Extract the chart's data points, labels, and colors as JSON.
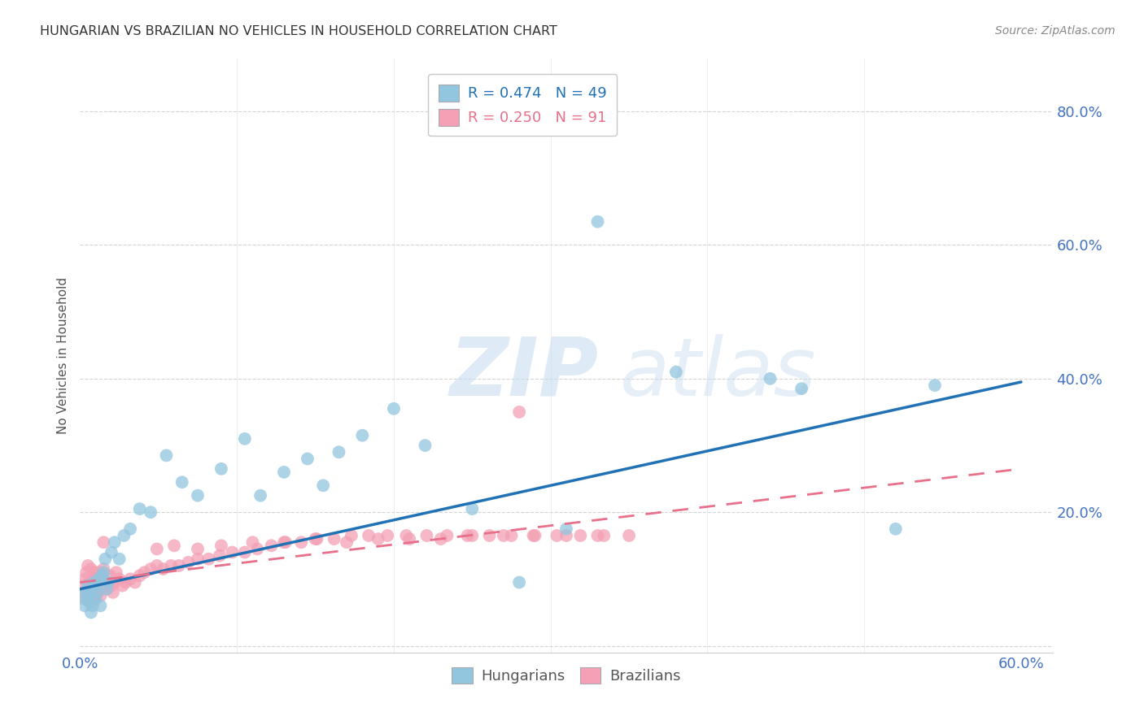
{
  "title": "HUNGARIAN VS BRAZILIAN NO VEHICLES IN HOUSEHOLD CORRELATION CHART",
  "source": "Source: ZipAtlas.com",
  "ylabel": "No Vehicles in Household",
  "xlim": [
    0.0,
    0.62
  ],
  "ylim": [
    -0.01,
    0.88
  ],
  "xtick_vals": [
    0.0,
    0.1,
    0.2,
    0.3,
    0.4,
    0.5,
    0.6
  ],
  "xticklabels": [
    "0.0%",
    "",
    "",
    "",
    "",
    "",
    "60.0%"
  ],
  "ytick_vals": [
    0.0,
    0.2,
    0.4,
    0.6,
    0.8
  ],
  "yticklabels": [
    "",
    "20.0%",
    "40.0%",
    "60.0%",
    "80.0%"
  ],
  "color_hungarian": "#92c5de",
  "color_brazilian": "#f4a0b5",
  "color_trendline_hungarian": "#2171b5",
  "color_trendline_brazilian": "#e8708a",
  "axis_tick_color": "#4472c4",
  "grid_color": "#d0d0d0",
  "title_color": "#333333",
  "source_color": "#888888",
  "ylabel_color": "#555555",
  "watermark_zip_color": "#c8ddf0",
  "watermark_atlas_color": "#c8ddf0",
  "hun_trendline_x0": 0.0,
  "hun_trendline_y0": 0.085,
  "hun_trendline_x1": 0.6,
  "hun_trendline_y1": 0.395,
  "bra_trendline_x0": 0.0,
  "bra_trendline_y0": 0.095,
  "bra_trendline_x1": 0.6,
  "bra_trendline_y1": 0.265,
  "hx": [
    0.002,
    0.003,
    0.004,
    0.005,
    0.005,
    0.006,
    0.007,
    0.007,
    0.008,
    0.009,
    0.01,
    0.01,
    0.011,
    0.012,
    0.013,
    0.014,
    0.015,
    0.016,
    0.017,
    0.018,
    0.02,
    0.022,
    0.025,
    0.028,
    0.032,
    0.038,
    0.045,
    0.055,
    0.065,
    0.075,
    0.09,
    0.105,
    0.115,
    0.13,
    0.145,
    0.155,
    0.165,
    0.18,
    0.2,
    0.22,
    0.25,
    0.28,
    0.31,
    0.33,
    0.38,
    0.44,
    0.46,
    0.52,
    0.545
  ],
  "hy": [
    0.075,
    0.06,
    0.08,
    0.09,
    0.07,
    0.065,
    0.05,
    0.08,
    0.06,
    0.095,
    0.07,
    0.09,
    0.08,
    0.1,
    0.06,
    0.105,
    0.11,
    0.13,
    0.085,
    0.095,
    0.14,
    0.155,
    0.13,
    0.165,
    0.175,
    0.205,
    0.2,
    0.285,
    0.245,
    0.225,
    0.265,
    0.31,
    0.225,
    0.26,
    0.28,
    0.24,
    0.29,
    0.315,
    0.355,
    0.3,
    0.205,
    0.095,
    0.175,
    0.635,
    0.41,
    0.4,
    0.385,
    0.175,
    0.39
  ],
  "bx": [
    0.002,
    0.003,
    0.003,
    0.004,
    0.004,
    0.005,
    0.005,
    0.006,
    0.006,
    0.007,
    0.007,
    0.008,
    0.008,
    0.009,
    0.009,
    0.01,
    0.01,
    0.011,
    0.011,
    0.012,
    0.012,
    0.013,
    0.013,
    0.014,
    0.014,
    0.015,
    0.015,
    0.016,
    0.017,
    0.018,
    0.019,
    0.02,
    0.021,
    0.022,
    0.023,
    0.025,
    0.027,
    0.029,
    0.032,
    0.035,
    0.038,
    0.041,
    0.045,
    0.049,
    0.053,
    0.058,
    0.063,
    0.069,
    0.075,
    0.082,
    0.089,
    0.097,
    0.105,
    0.113,
    0.122,
    0.131,
    0.141,
    0.151,
    0.162,
    0.173,
    0.184,
    0.196,
    0.208,
    0.221,
    0.234,
    0.247,
    0.261,
    0.275,
    0.289,
    0.304,
    0.319,
    0.334,
    0.049,
    0.06,
    0.075,
    0.09,
    0.11,
    0.13,
    0.15,
    0.17,
    0.19,
    0.21,
    0.23,
    0.25,
    0.27,
    0.29,
    0.31,
    0.33,
    0.35,
    0.28,
    0.015
  ],
  "by": [
    0.09,
    0.1,
    0.07,
    0.08,
    0.11,
    0.085,
    0.12,
    0.075,
    0.095,
    0.09,
    0.115,
    0.07,
    0.1,
    0.085,
    0.11,
    0.075,
    0.095,
    0.1,
    0.08,
    0.09,
    0.11,
    0.075,
    0.095,
    0.085,
    0.105,
    0.095,
    0.115,
    0.09,
    0.085,
    0.095,
    0.105,
    0.09,
    0.08,
    0.095,
    0.11,
    0.1,
    0.09,
    0.095,
    0.1,
    0.095,
    0.105,
    0.11,
    0.115,
    0.12,
    0.115,
    0.12,
    0.12,
    0.125,
    0.13,
    0.13,
    0.135,
    0.14,
    0.14,
    0.145,
    0.15,
    0.155,
    0.155,
    0.16,
    0.16,
    0.165,
    0.165,
    0.165,
    0.165,
    0.165,
    0.165,
    0.165,
    0.165,
    0.165,
    0.165,
    0.165,
    0.165,
    0.165,
    0.145,
    0.15,
    0.145,
    0.15,
    0.155,
    0.155,
    0.16,
    0.155,
    0.16,
    0.16,
    0.16,
    0.165,
    0.165,
    0.165,
    0.165,
    0.165,
    0.165,
    0.35,
    0.155
  ]
}
